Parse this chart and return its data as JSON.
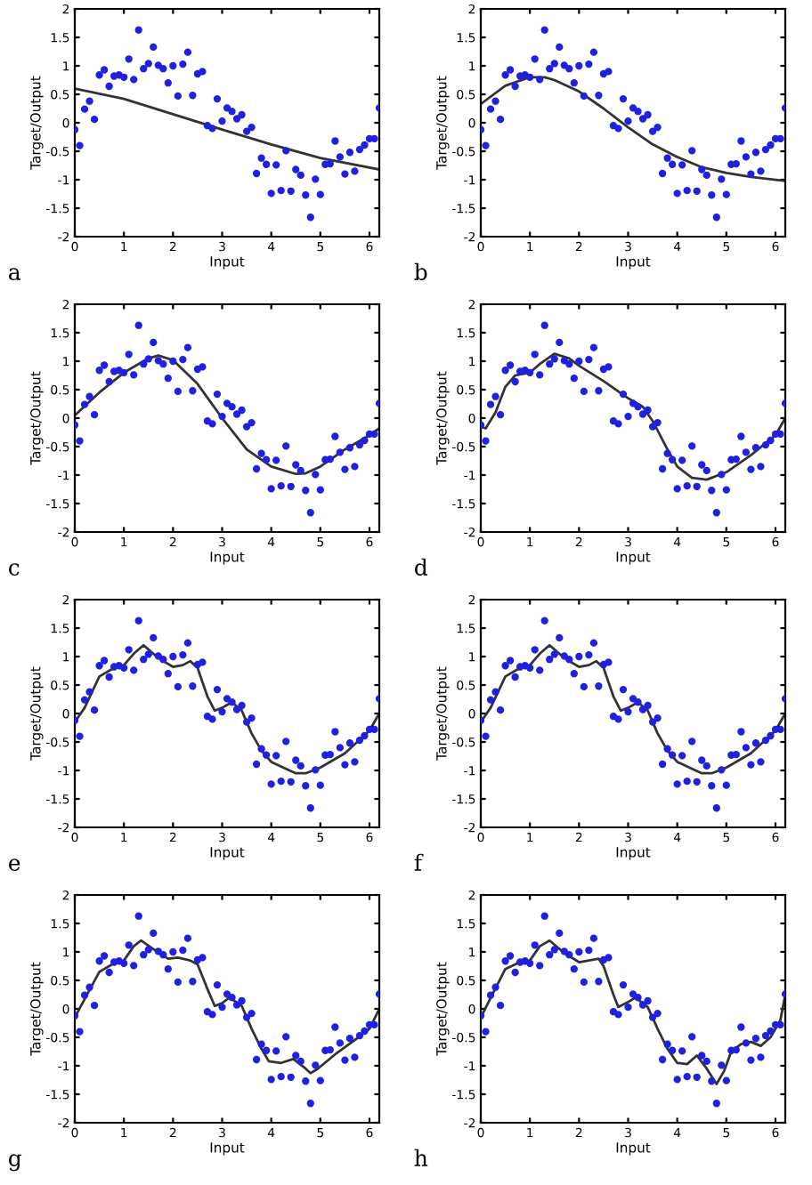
{
  "chart_data": [
    {
      "type": "scatter",
      "title": "a",
      "xlabel": "Input",
      "ylabel": "Target/Output",
      "xlim": [
        0,
        6.2
      ],
      "ylim": [
        -2,
        2
      ],
      "xticks": [
        0,
        1,
        2,
        3,
        4,
        5,
        6
      ],
      "yticks": [
        -2,
        -1.5,
        -1,
        -0.5,
        0,
        0.5,
        1,
        1.5,
        2
      ],
      "grid": false,
      "marker": "circle",
      "series": [
        {
          "type": "scatter",
          "color": "#2020e0",
          "x": [
            0,
            0.1,
            0.2,
            0.3,
            0.4,
            0.5,
            0.6,
            0.7,
            0.8,
            0.9,
            1.0,
            1.1,
            1.2,
            1.3,
            1.4,
            1.5,
            1.6,
            1.7,
            1.8,
            1.9,
            2.0,
            2.1,
            2.2,
            2.3,
            2.4,
            2.5,
            2.6,
            2.7,
            2.8,
            2.9,
            3.0,
            3.1,
            3.2,
            3.3,
            3.4,
            3.5,
            3.6,
            3.7,
            3.8,
            3.9,
            4.0,
            4.1,
            4.2,
            4.3,
            4.4,
            4.5,
            4.6,
            4.7,
            4.8,
            4.9,
            5.0,
            5.1,
            5.2,
            5.3,
            5.4,
            5.5,
            5.6,
            5.7,
            5.8,
            5.9,
            6.0,
            6.1,
            6.2
          ],
          "values": [
            -0.12,
            -0.4,
            0.24,
            0.38,
            0.06,
            0.84,
            0.93,
            0.64,
            0.82,
            0.84,
            0.8,
            1.12,
            0.76,
            1.63,
            0.95,
            1.04,
            1.33,
            1.01,
            0.95,
            0.7,
            1.0,
            0.47,
            1.03,
            1.24,
            0.48,
            0.86,
            0.9,
            -0.05,
            -0.1,
            0.42,
            0.03,
            0.26,
            0.2,
            0.07,
            0.14,
            -0.15,
            -0.08,
            -0.89,
            -0.62,
            -0.73,
            -1.24,
            -0.74,
            -1.19,
            -0.49,
            -1.2,
            -0.82,
            -0.92,
            -1.27,
            -1.66,
            -0.99,
            -1.26,
            -0.73,
            -0.72,
            -0.32,
            -0.6,
            -0.9,
            -0.52,
            -0.85,
            -0.47,
            -0.39,
            -0.28,
            -0.28,
            0.26
          ]
        },
        {
          "type": "line",
          "color": "#333333",
          "marker": "none",
          "line_style": "solid",
          "x": [
            0,
            1,
            2,
            3,
            4,
            5,
            6.2
          ],
          "values": [
            0.6,
            0.42,
            0.15,
            -0.12,
            -0.38,
            -0.62,
            -0.82
          ]
        }
      ]
    },
    {
      "type": "scatter",
      "title": "b",
      "xlabel": "Input",
      "ylabel": "Target/Output",
      "xlim": [
        0,
        6.2
      ],
      "ylim": [
        -2,
        2
      ],
      "xticks": [
        0,
        1,
        2,
        3,
        4,
        5,
        6
      ],
      "yticks": [
        -2,
        -1.5,
        -1,
        -0.5,
        0,
        0.5,
        1,
        1.5,
        2
      ],
      "grid": false,
      "marker": "circle",
      "series": [
        {
          "type": "scatter",
          "color": "#2020e0",
          "x": [
            0,
            0.1,
            0.2,
            0.3,
            0.4,
            0.5,
            0.6,
            0.7,
            0.8,
            0.9,
            1.0,
            1.1,
            1.2,
            1.3,
            1.4,
            1.5,
            1.6,
            1.7,
            1.8,
            1.9,
            2.0,
            2.1,
            2.2,
            2.3,
            2.4,
            2.5,
            2.6,
            2.7,
            2.8,
            2.9,
            3.0,
            3.1,
            3.2,
            3.3,
            3.4,
            3.5,
            3.6,
            3.7,
            3.8,
            3.9,
            4.0,
            4.1,
            4.2,
            4.3,
            4.4,
            4.5,
            4.6,
            4.7,
            4.8,
            4.9,
            5.0,
            5.1,
            5.2,
            5.3,
            5.4,
            5.5,
            5.6,
            5.7,
            5.8,
            5.9,
            6.0,
            6.1,
            6.2
          ],
          "values": [
            -0.12,
            -0.4,
            0.24,
            0.38,
            0.06,
            0.84,
            0.93,
            0.64,
            0.82,
            0.84,
            0.8,
            1.12,
            0.76,
            1.63,
            0.95,
            1.04,
            1.33,
            1.01,
            0.95,
            0.7,
            1.0,
            0.47,
            1.03,
            1.24,
            0.48,
            0.86,
            0.9,
            -0.05,
            -0.1,
            0.42,
            0.03,
            0.26,
            0.2,
            0.07,
            0.14,
            -0.15,
            -0.08,
            -0.89,
            -0.62,
            -0.73,
            -1.24,
            -0.74,
            -1.19,
            -0.49,
            -1.2,
            -0.82,
            -0.92,
            -1.27,
            -1.66,
            -0.99,
            -1.26,
            -0.73,
            -0.72,
            -0.32,
            -0.6,
            -0.9,
            -0.52,
            -0.85,
            -0.47,
            -0.39,
            -0.28,
            -0.28,
            0.26
          ]
        },
        {
          "type": "line",
          "color": "#333333",
          "marker": "none",
          "line_style": "solid",
          "x": [
            0,
            0.5,
            1.0,
            1.3,
            1.5,
            2.0,
            2.5,
            3.0,
            3.5,
            4.0,
            4.5,
            5.0,
            5.5,
            6.2
          ],
          "values": [
            0.33,
            0.65,
            0.8,
            0.8,
            0.75,
            0.55,
            0.25,
            -0.08,
            -0.38,
            -0.6,
            -0.78,
            -0.88,
            -0.95,
            -1.02
          ]
        }
      ]
    },
    {
      "type": "scatter",
      "title": "c",
      "xlabel": "Input",
      "ylabel": "Target/Output",
      "xlim": [
        0,
        6.2
      ],
      "ylim": [
        -2,
        2
      ],
      "xticks": [
        0,
        1,
        2,
        3,
        4,
        5,
        6
      ],
      "yticks": [
        -2,
        -1.5,
        -1,
        -0.5,
        0,
        0.5,
        1,
        1.5,
        2
      ],
      "grid": false,
      "marker": "circle",
      "series": [
        {
          "type": "scatter",
          "color": "#2020e0",
          "x": [
            0,
            0.1,
            0.2,
            0.3,
            0.4,
            0.5,
            0.6,
            0.7,
            0.8,
            0.9,
            1.0,
            1.1,
            1.2,
            1.3,
            1.4,
            1.5,
            1.6,
            1.7,
            1.8,
            1.9,
            2.0,
            2.1,
            2.2,
            2.3,
            2.4,
            2.5,
            2.6,
            2.7,
            2.8,
            2.9,
            3.0,
            3.1,
            3.2,
            3.3,
            3.4,
            3.5,
            3.6,
            3.7,
            3.8,
            3.9,
            4.0,
            4.1,
            4.2,
            4.3,
            4.4,
            4.5,
            4.6,
            4.7,
            4.8,
            4.9,
            5.0,
            5.1,
            5.2,
            5.3,
            5.4,
            5.5,
            5.6,
            5.7,
            5.8,
            5.9,
            6.0,
            6.1,
            6.2
          ],
          "values": [
            -0.12,
            -0.4,
            0.24,
            0.38,
            0.06,
            0.84,
            0.93,
            0.64,
            0.82,
            0.84,
            0.8,
            1.12,
            0.76,
            1.63,
            0.95,
            1.04,
            1.33,
            1.01,
            0.95,
            0.7,
            1.0,
            0.47,
            1.03,
            1.24,
            0.48,
            0.86,
            0.9,
            -0.05,
            -0.1,
            0.42,
            0.03,
            0.26,
            0.2,
            0.07,
            0.14,
            -0.15,
            -0.08,
            -0.89,
            -0.62,
            -0.73,
            -1.24,
            -0.74,
            -1.19,
            -0.49,
            -1.2,
            -0.82,
            -0.92,
            -1.27,
            -1.66,
            -0.99,
            -1.26,
            -0.73,
            -0.72,
            -0.32,
            -0.6,
            -0.9,
            -0.52,
            -0.85,
            -0.47,
            -0.39,
            -0.28,
            -0.28,
            0.26
          ]
        },
        {
          "type": "line",
          "color": "#333333",
          "marker": "none",
          "line_style": "solid",
          "x": [
            0,
            0.5,
            1.0,
            1.5,
            1.7,
            2.0,
            2.5,
            3.0,
            3.5,
            4.0,
            4.5,
            4.7,
            5.0,
            5.5,
            6.0,
            6.2
          ],
          "values": [
            0.05,
            0.45,
            0.8,
            1.05,
            1.1,
            1.02,
            0.6,
            0.0,
            -0.55,
            -0.85,
            -0.98,
            -0.97,
            -0.85,
            -0.55,
            -0.3,
            -0.18
          ]
        }
      ]
    },
    {
      "type": "scatter",
      "title": "d",
      "xlabel": "Input",
      "ylabel": "Target/Output",
      "xlim": [
        0,
        6.2
      ],
      "ylim": [
        -2,
        2
      ],
      "xticks": [
        0,
        1,
        2,
        3,
        4,
        5,
        6
      ],
      "yticks": [
        -2,
        -1.5,
        -1,
        -0.5,
        0,
        0.5,
        1,
        1.5,
        2
      ],
      "grid": false,
      "marker": "circle",
      "series": [
        {
          "type": "scatter",
          "color": "#2020e0",
          "x": [
            0,
            0.1,
            0.2,
            0.3,
            0.4,
            0.5,
            0.6,
            0.7,
            0.8,
            0.9,
            1.0,
            1.1,
            1.2,
            1.3,
            1.4,
            1.5,
            1.6,
            1.7,
            1.8,
            1.9,
            2.0,
            2.1,
            2.2,
            2.3,
            2.4,
            2.5,
            2.6,
            2.7,
            2.8,
            2.9,
            3.0,
            3.1,
            3.2,
            3.3,
            3.4,
            3.5,
            3.6,
            3.7,
            3.8,
            3.9,
            4.0,
            4.1,
            4.2,
            4.3,
            4.4,
            4.5,
            4.6,
            4.7,
            4.8,
            4.9,
            5.0,
            5.1,
            5.2,
            5.3,
            5.4,
            5.5,
            5.6,
            5.7,
            5.8,
            5.9,
            6.0,
            6.1,
            6.2
          ],
          "values": [
            -0.12,
            -0.4,
            0.24,
            0.38,
            0.06,
            0.84,
            0.93,
            0.64,
            0.82,
            0.84,
            0.8,
            1.12,
            0.76,
            1.63,
            0.95,
            1.04,
            1.33,
            1.01,
            0.95,
            0.7,
            1.0,
            0.47,
            1.03,
            1.24,
            0.48,
            0.86,
            0.9,
            -0.05,
            -0.1,
            0.42,
            0.03,
            0.26,
            0.2,
            0.07,
            0.14,
            -0.15,
            -0.08,
            -0.89,
            -0.62,
            -0.73,
            -1.24,
            -0.74,
            -1.19,
            -0.49,
            -1.2,
            -0.82,
            -0.92,
            -1.27,
            -1.66,
            -0.99,
            -1.26,
            -0.73,
            -0.72,
            -0.32,
            -0.6,
            -0.9,
            -0.52,
            -0.85,
            -0.47,
            -0.39,
            -0.28,
            -0.28,
            0.26
          ]
        },
        {
          "type": "line",
          "color": "#333333",
          "marker": "none",
          "line_style": "solid",
          "x": [
            0,
            0.1,
            0.3,
            0.5,
            0.7,
            1.0,
            1.2,
            1.5,
            1.8,
            2.0,
            2.5,
            3.0,
            3.3,
            3.5,
            3.8,
            4.0,
            4.3,
            4.6,
            5.0,
            5.5,
            6.0,
            6.2
          ],
          "values": [
            -0.15,
            -0.18,
            0.1,
            0.55,
            0.75,
            0.8,
            0.95,
            1.13,
            1.05,
            0.92,
            0.65,
            0.35,
            0.2,
            -0.05,
            -0.55,
            -0.85,
            -1.05,
            -1.08,
            -0.95,
            -0.65,
            -0.3,
            0.0
          ]
        }
      ]
    },
    {
      "type": "scatter",
      "title": "e",
      "xlabel": "Input",
      "ylabel": "Target/Output",
      "xlim": [
        0,
        6.2
      ],
      "ylim": [
        -2,
        2
      ],
      "xticks": [
        0,
        1,
        2,
        3,
        4,
        5,
        6
      ],
      "yticks": [
        -2,
        -1.5,
        -1,
        -0.5,
        0,
        0.5,
        1,
        1.5,
        2
      ],
      "grid": false,
      "marker": "circle",
      "series": [
        {
          "type": "scatter",
          "color": "#2020e0",
          "x": [
            0,
            0.1,
            0.2,
            0.3,
            0.4,
            0.5,
            0.6,
            0.7,
            0.8,
            0.9,
            1.0,
            1.1,
            1.2,
            1.3,
            1.4,
            1.5,
            1.6,
            1.7,
            1.8,
            1.9,
            2.0,
            2.1,
            2.2,
            2.3,
            2.4,
            2.5,
            2.6,
            2.7,
            2.8,
            2.9,
            3.0,
            3.1,
            3.2,
            3.3,
            3.4,
            3.5,
            3.6,
            3.7,
            3.8,
            3.9,
            4.0,
            4.1,
            4.2,
            4.3,
            4.4,
            4.5,
            4.6,
            4.7,
            4.8,
            4.9,
            5.0,
            5.1,
            5.2,
            5.3,
            5.4,
            5.5,
            5.6,
            5.7,
            5.8,
            5.9,
            6.0,
            6.1,
            6.2
          ],
          "values": [
            -0.12,
            -0.4,
            0.24,
            0.38,
            0.06,
            0.84,
            0.93,
            0.64,
            0.82,
            0.84,
            0.8,
            1.12,
            0.76,
            1.63,
            0.95,
            1.04,
            1.33,
            1.01,
            0.95,
            0.7,
            1.0,
            0.47,
            1.03,
            1.24,
            0.48,
            0.86,
            0.9,
            -0.05,
            -0.1,
            0.42,
            0.03,
            0.26,
            0.2,
            0.07,
            0.14,
            -0.15,
            -0.08,
            -0.89,
            -0.62,
            -0.73,
            -1.24,
            -0.74,
            -1.19,
            -0.49,
            -1.2,
            -0.82,
            -0.92,
            -1.27,
            -1.66,
            -0.99,
            -1.26,
            -0.73,
            -0.72,
            -0.32,
            -0.6,
            -0.9,
            -0.52,
            -0.85,
            -0.47,
            -0.39,
            -0.28,
            -0.28,
            0.26
          ]
        },
        {
          "type": "line",
          "color": "#333333",
          "marker": "none",
          "line_style": "solid",
          "x": [
            0,
            0.2,
            0.5,
            0.8,
            1.0,
            1.2,
            1.4,
            1.6,
            1.8,
            2.0,
            2.2,
            2.35,
            2.5,
            2.7,
            2.85,
            3.0,
            3.2,
            3.4,
            3.6,
            3.8,
            4.0,
            4.5,
            4.7,
            5.0,
            5.5,
            6.0,
            6.2
          ],
          "values": [
            -0.15,
            0.1,
            0.65,
            0.8,
            0.85,
            1.05,
            1.2,
            1.05,
            0.92,
            0.82,
            0.85,
            0.92,
            0.8,
            0.3,
            0.05,
            0.1,
            0.2,
            0.05,
            -0.35,
            -0.65,
            -0.85,
            -1.05,
            -1.05,
            -0.95,
            -0.7,
            -0.3,
            0.0
          ]
        }
      ]
    },
    {
      "type": "scatter",
      "title": "f",
      "xlabel": "Input",
      "ylabel": "Target/Output",
      "xlim": [
        0,
        6.2
      ],
      "ylim": [
        -2,
        2
      ],
      "xticks": [
        0,
        1,
        2,
        3,
        4,
        5,
        6
      ],
      "yticks": [
        -2,
        -1.5,
        -1,
        -0.5,
        0,
        0.5,
        1,
        1.5,
        2
      ],
      "grid": false,
      "marker": "circle",
      "series": [
        {
          "type": "scatter",
          "color": "#2020e0",
          "x": [
            0,
            0.1,
            0.2,
            0.3,
            0.4,
            0.5,
            0.6,
            0.7,
            0.8,
            0.9,
            1.0,
            1.1,
            1.2,
            1.3,
            1.4,
            1.5,
            1.6,
            1.7,
            1.8,
            1.9,
            2.0,
            2.1,
            2.2,
            2.3,
            2.4,
            2.5,
            2.6,
            2.7,
            2.8,
            2.9,
            3.0,
            3.1,
            3.2,
            3.3,
            3.4,
            3.5,
            3.6,
            3.7,
            3.8,
            3.9,
            4.0,
            4.1,
            4.2,
            4.3,
            4.4,
            4.5,
            4.6,
            4.7,
            4.8,
            4.9,
            5.0,
            5.1,
            5.2,
            5.3,
            5.4,
            5.5,
            5.6,
            5.7,
            5.8,
            5.9,
            6.0,
            6.1,
            6.2
          ],
          "values": [
            -0.12,
            -0.4,
            0.24,
            0.38,
            0.06,
            0.84,
            0.93,
            0.64,
            0.82,
            0.84,
            0.8,
            1.12,
            0.76,
            1.63,
            0.95,
            1.04,
            1.33,
            1.01,
            0.95,
            0.7,
            1.0,
            0.47,
            1.03,
            1.24,
            0.48,
            0.86,
            0.9,
            -0.05,
            -0.1,
            0.42,
            0.03,
            0.26,
            0.2,
            0.07,
            0.14,
            -0.15,
            -0.08,
            -0.89,
            -0.62,
            -0.73,
            -1.24,
            -0.74,
            -1.19,
            -0.49,
            -1.2,
            -0.82,
            -0.92,
            -1.27,
            -1.66,
            -0.99,
            -1.26,
            -0.73,
            -0.72,
            -0.32,
            -0.6,
            -0.9,
            -0.52,
            -0.85,
            -0.47,
            -0.39,
            -0.28,
            -0.28,
            0.26
          ]
        },
        {
          "type": "line",
          "color": "#333333",
          "marker": "none",
          "line_style": "solid",
          "x": [
            0,
            0.2,
            0.5,
            0.8,
            1.0,
            1.2,
            1.4,
            1.6,
            1.8,
            2.0,
            2.2,
            2.35,
            2.5,
            2.7,
            2.85,
            3.0,
            3.2,
            3.4,
            3.6,
            3.8,
            4.0,
            4.5,
            4.7,
            5.0,
            5.5,
            6.0,
            6.2
          ],
          "values": [
            -0.15,
            0.1,
            0.65,
            0.8,
            0.85,
            1.05,
            1.2,
            1.05,
            0.92,
            0.82,
            0.85,
            0.92,
            0.8,
            0.3,
            0.05,
            0.1,
            0.2,
            0.05,
            -0.35,
            -0.65,
            -0.85,
            -1.05,
            -1.05,
            -0.95,
            -0.7,
            -0.3,
            0.0
          ]
        }
      ]
    },
    {
      "type": "scatter",
      "title": "g",
      "xlabel": "Input",
      "ylabel": "Target/Output",
      "xlim": [
        0,
        6.2
      ],
      "ylim": [
        -2,
        2
      ],
      "xticks": [
        0,
        1,
        2,
        3,
        4,
        5,
        6
      ],
      "yticks": [
        -2,
        -1.5,
        -1,
        -0.5,
        0,
        0.5,
        1,
        1.5,
        2
      ],
      "grid": false,
      "marker": "circle",
      "series": [
        {
          "type": "scatter",
          "color": "#2020e0",
          "x": [
            0,
            0.1,
            0.2,
            0.3,
            0.4,
            0.5,
            0.6,
            0.7,
            0.8,
            0.9,
            1.0,
            1.1,
            1.2,
            1.3,
            1.4,
            1.5,
            1.6,
            1.7,
            1.8,
            1.9,
            2.0,
            2.1,
            2.2,
            2.3,
            2.4,
            2.5,
            2.6,
            2.7,
            2.8,
            2.9,
            3.0,
            3.1,
            3.2,
            3.3,
            3.4,
            3.5,
            3.6,
            3.7,
            3.8,
            3.9,
            4.0,
            4.1,
            4.2,
            4.3,
            4.4,
            4.5,
            4.6,
            4.7,
            4.8,
            4.9,
            5.0,
            5.1,
            5.2,
            5.3,
            5.4,
            5.5,
            5.6,
            5.7,
            5.8,
            5.9,
            6.0,
            6.1,
            6.2
          ],
          "values": [
            -0.12,
            -0.4,
            0.24,
            0.38,
            0.06,
            0.84,
            0.93,
            0.64,
            0.82,
            0.84,
            0.8,
            1.12,
            0.76,
            1.63,
            0.95,
            1.04,
            1.33,
            1.01,
            0.95,
            0.7,
            1.0,
            0.47,
            1.03,
            1.24,
            0.48,
            0.86,
            0.9,
            -0.05,
            -0.1,
            0.42,
            0.03,
            0.26,
            0.2,
            0.07,
            0.14,
            -0.15,
            -0.08,
            -0.89,
            -0.62,
            -0.73,
            -1.24,
            -0.74,
            -1.19,
            -0.49,
            -1.2,
            -0.82,
            -0.92,
            -1.27,
            -1.66,
            -0.99,
            -1.26,
            -0.73,
            -0.72,
            -0.32,
            -0.6,
            -0.9,
            -0.52,
            -0.85,
            -0.47,
            -0.39,
            -0.28,
            -0.28,
            0.26
          ]
        },
        {
          "type": "line",
          "color": "#333333",
          "marker": "none",
          "line_style": "solid",
          "x": [
            0,
            0.5,
            0.8,
            1.0,
            1.2,
            1.35,
            1.6,
            1.9,
            2.1,
            2.35,
            2.5,
            2.7,
            2.85,
            3.0,
            3.15,
            3.4,
            3.6,
            3.8,
            3.95,
            4.2,
            4.45,
            4.7,
            4.8,
            4.95,
            5.3,
            5.7,
            6.0,
            6.2
          ],
          "values": [
            -0.15,
            0.65,
            0.8,
            0.85,
            1.1,
            1.2,
            1.05,
            0.88,
            0.9,
            0.85,
            0.78,
            0.35,
            0.05,
            0.1,
            0.2,
            0.05,
            -0.35,
            -0.7,
            -0.92,
            -0.95,
            -0.88,
            -1.05,
            -1.13,
            -1.05,
            -0.8,
            -0.55,
            -0.35,
            0.0
          ]
        }
      ]
    },
    {
      "type": "scatter",
      "title": "h",
      "xlabel": "Input",
      "ylabel": "Target/Output",
      "xlim": [
        0,
        6.2
      ],
      "ylim": [
        -2,
        2
      ],
      "xticks": [
        0,
        1,
        2,
        3,
        4,
        5,
        6
      ],
      "yticks": [
        -2,
        -1.5,
        -1,
        -0.5,
        0,
        0.5,
        1,
        1.5,
        2
      ],
      "grid": false,
      "marker": "circle",
      "series": [
        {
          "type": "scatter",
          "color": "#2020e0",
          "x": [
            0,
            0.1,
            0.2,
            0.3,
            0.4,
            0.5,
            0.6,
            0.7,
            0.8,
            0.9,
            1.0,
            1.1,
            1.2,
            1.3,
            1.4,
            1.5,
            1.6,
            1.7,
            1.8,
            1.9,
            2.0,
            2.1,
            2.2,
            2.3,
            2.4,
            2.5,
            2.6,
            2.7,
            2.8,
            2.9,
            3.0,
            3.1,
            3.2,
            3.3,
            3.4,
            3.5,
            3.6,
            3.7,
            3.8,
            3.9,
            4.0,
            4.1,
            4.2,
            4.3,
            4.4,
            4.5,
            4.6,
            4.7,
            4.8,
            4.9,
            5.0,
            5.1,
            5.2,
            5.3,
            5.4,
            5.5,
            5.6,
            5.7,
            5.8,
            5.9,
            6.0,
            6.1,
            6.2
          ],
          "values": [
            -0.12,
            -0.4,
            0.24,
            0.38,
            0.06,
            0.84,
            0.93,
            0.64,
            0.82,
            0.84,
            0.8,
            1.12,
            0.76,
            1.63,
            0.95,
            1.04,
            1.33,
            1.01,
            0.95,
            0.7,
            1.0,
            0.47,
            1.03,
            1.24,
            0.48,
            0.86,
            0.9,
            -0.05,
            -0.1,
            0.42,
            0.03,
            0.26,
            0.2,
            0.07,
            0.14,
            -0.15,
            -0.08,
            -0.89,
            -0.62,
            -0.73,
            -1.24,
            -0.74,
            -1.19,
            -0.49,
            -1.2,
            -0.82,
            -0.92,
            -1.27,
            -1.66,
            -0.99,
            -1.26,
            -0.73,
            -0.72,
            -0.32,
            -0.6,
            -0.9,
            -0.52,
            -0.85,
            -0.47,
            -0.39,
            -0.28,
            -0.28,
            0.26
          ]
        },
        {
          "type": "line",
          "color": "#333333",
          "marker": "none",
          "line_style": "solid",
          "x": [
            0,
            0.5,
            0.8,
            1.0,
            1.2,
            1.4,
            1.7,
            2.0,
            2.2,
            2.4,
            2.5,
            2.7,
            2.8,
            3.0,
            3.15,
            3.4,
            3.6,
            3.8,
            4.0,
            4.2,
            4.4,
            4.6,
            4.8,
            4.95,
            5.1,
            5.3,
            5.5,
            5.7,
            5.9,
            6.1,
            6.2
          ],
          "values": [
            -0.15,
            0.7,
            0.82,
            0.85,
            1.1,
            1.2,
            0.98,
            0.82,
            0.85,
            0.88,
            0.75,
            0.25,
            0.03,
            0.12,
            0.2,
            0.03,
            -0.35,
            -0.7,
            -0.95,
            -0.97,
            -0.82,
            -1.05,
            -1.32,
            -1.1,
            -0.75,
            -0.62,
            -0.58,
            -0.65,
            -0.5,
            -0.2,
            0.25
          ]
        }
      ]
    }
  ]
}
